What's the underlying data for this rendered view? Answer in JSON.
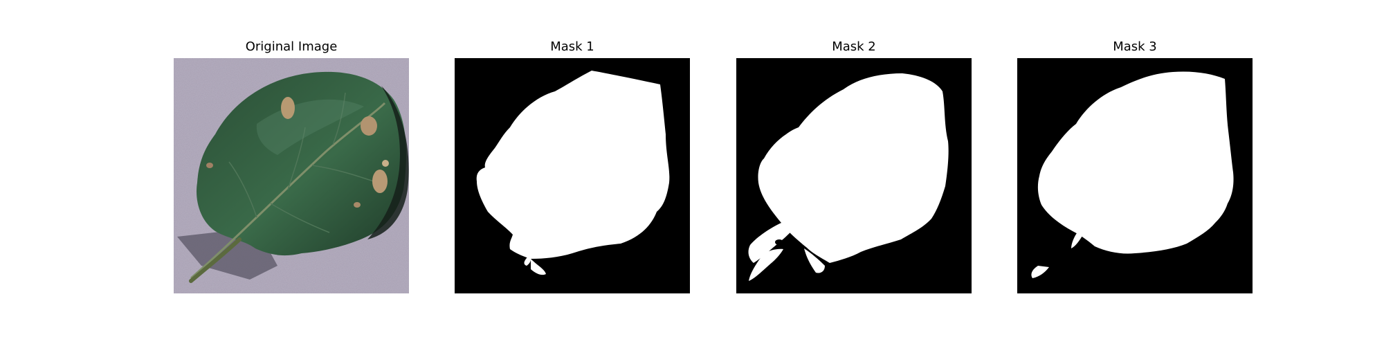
{
  "panels": [
    {
      "title": "Original Image"
    },
    {
      "title": "Mask 1"
    },
    {
      "title": "Mask 2"
    },
    {
      "title": "Mask 3"
    }
  ],
  "colors": {
    "background": "#ffffff",
    "mask_bg": "#000000",
    "mask_fg": "#ffffff",
    "surface": "#a79fb3",
    "leaf": "#2f5a3c",
    "leaf_dark": "#244833",
    "leaf_shadow": "#15201a",
    "spot": "#b79a72",
    "stem": "#5b6a3e"
  }
}
